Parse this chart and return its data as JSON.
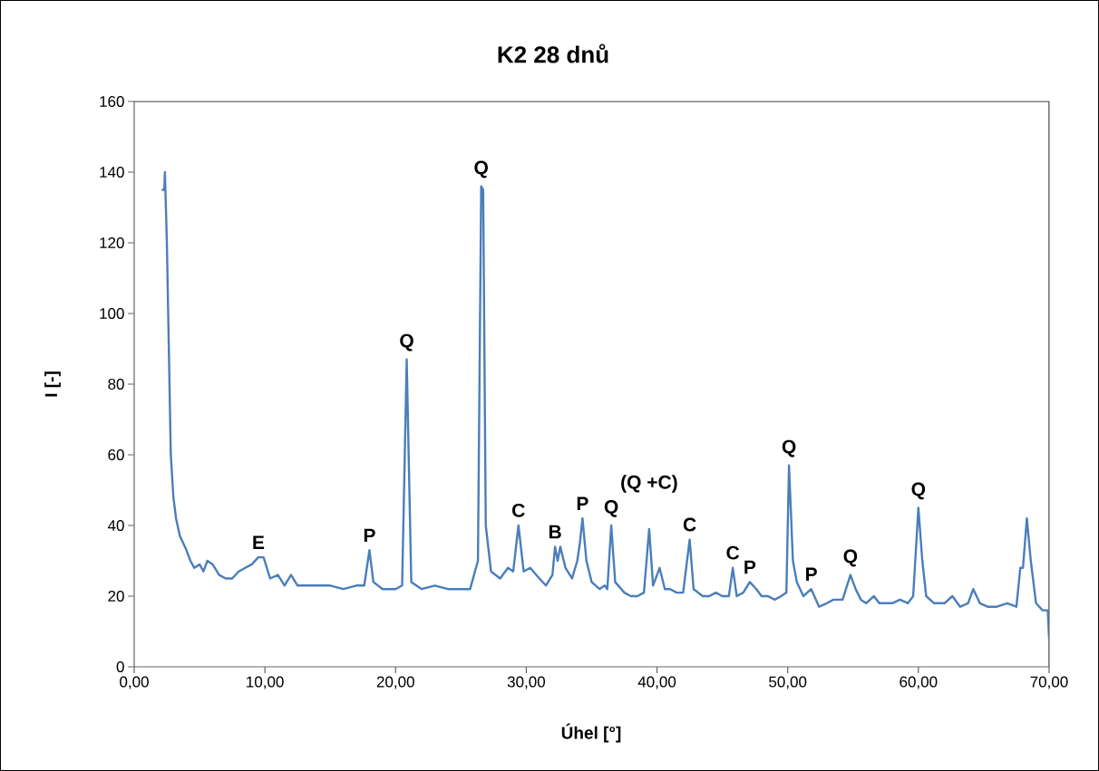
{
  "chart_data": {
    "type": "line",
    "title": "K2 28 dnů",
    "xlabel": "Úhel [°]",
    "ylabel": "I [-]",
    "xlim": [
      0,
      70
    ],
    "ylim": [
      0,
      160
    ],
    "xticks": [
      {
        "value": 0,
        "label": "0,00"
      },
      {
        "value": 10,
        "label": "10,00"
      },
      {
        "value": 20,
        "label": "20,00"
      },
      {
        "value": 30,
        "label": "30,00"
      },
      {
        "value": 40,
        "label": "40,00"
      },
      {
        "value": 50,
        "label": "50,00"
      },
      {
        "value": 60,
        "label": "60,00"
      },
      {
        "value": 70,
        "label": "70,00"
      }
    ],
    "yticks": [
      0,
      20,
      40,
      60,
      80,
      100,
      120,
      140,
      160
    ],
    "grid": false,
    "marker": "none",
    "line_style": "solid",
    "series": [
      {
        "color": "#4a7ebb",
        "x": [
          2.1,
          2.3,
          2.35,
          2.5,
          2.6,
          2.7,
          2.8,
          3.0,
          3.2,
          3.5,
          4.0,
          4.3,
          4.6,
          5.0,
          5.3,
          5.6,
          6.0,
          6.5,
          7.0,
          7.5,
          8.0,
          8.5,
          9.0,
          9.5,
          9.9,
          10.4,
          11.0,
          11.5,
          12.0,
          12.5,
          13.0,
          14.0,
          15.0,
          16.0,
          17.0,
          17.6,
          18.0,
          18.3,
          19.0,
          20.0,
          20.5,
          20.85,
          21.2,
          22.0,
          23.0,
          24.0,
          25.0,
          25.7,
          26.0,
          26.3,
          26.55,
          26.7,
          26.9,
          27.3,
          28.0,
          28.6,
          29.0,
          29.4,
          29.8,
          30.3,
          31.0,
          31.5,
          32.0,
          32.2,
          32.4,
          32.6,
          33.0,
          33.5,
          33.9,
          34.1,
          34.3,
          34.6,
          35.0,
          35.6,
          36.0,
          36.2,
          36.5,
          36.8,
          37.5,
          38.0,
          38.5,
          39.0,
          39.4,
          39.7,
          40.2,
          40.6,
          41.0,
          41.5,
          42.0,
          42.5,
          42.8,
          43.5,
          44.0,
          44.5,
          45.0,
          45.5,
          45.8,
          46.1,
          46.6,
          47.1,
          47.6,
          48.0,
          48.5,
          49.0,
          49.5,
          49.9,
          50.1,
          50.4,
          50.7,
          51.2,
          51.8,
          52.4,
          53.0,
          53.5,
          54.2,
          54.8,
          55.2,
          55.6,
          56.0,
          56.6,
          57.0,
          58.0,
          58.6,
          59.2,
          59.6,
          60.0,
          60.3,
          60.6,
          61.2,
          62.0,
          62.6,
          63.2,
          63.8,
          64.2,
          64.7,
          65.3,
          66.0,
          66.8,
          67.5,
          67.8,
          68.0,
          68.3,
          68.6,
          69.0,
          69.5,
          69.9,
          70.0
        ],
        "values": [
          135,
          135,
          140,
          120,
          100,
          80,
          60,
          48,
          42,
          37,
          33,
          30,
          28,
          29,
          27,
          30,
          29,
          26,
          25,
          25,
          27,
          28,
          29,
          31,
          31,
          25,
          26,
          23,
          26,
          23,
          23,
          23,
          23,
          22,
          23,
          23,
          33,
          24,
          22,
          22,
          23,
          87,
          24,
          22,
          23,
          22,
          22,
          22,
          26,
          30,
          136,
          135,
          40,
          27,
          25,
          28,
          27,
          40,
          27,
          28,
          25,
          23,
          26,
          34,
          30,
          34,
          28,
          25,
          30,
          35,
          42,
          30,
          24,
          22,
          23,
          22,
          40,
          24,
          21,
          20,
          20,
          21,
          39,
          23,
          28,
          22,
          22,
          21,
          21,
          36,
          22,
          20,
          20,
          21,
          20,
          20,
          28,
          20,
          21,
          24,
          22,
          20,
          20,
          19,
          20,
          21,
          57,
          30,
          24,
          20,
          22,
          17,
          18,
          19,
          19,
          26,
          22,
          19,
          18,
          20,
          18,
          18,
          19,
          18,
          20,
          45,
          30,
          20,
          18,
          18,
          20,
          17,
          18,
          22,
          18,
          17,
          17,
          18,
          17,
          28,
          28,
          42,
          30,
          18,
          16,
          16,
          8
        ]
      }
    ],
    "annotations": [
      {
        "text": "E",
        "x": 9.5,
        "y": 31
      },
      {
        "text": "P",
        "x": 18.0,
        "y": 33
      },
      {
        "text": "Q",
        "x": 20.85,
        "y": 87
      },
      {
        "text": "Q",
        "x": 26.55,
        "y": 136
      },
      {
        "text": "C",
        "x": 29.4,
        "y": 40
      },
      {
        "text": "B",
        "x": 32.2,
        "y": 34
      },
      {
        "text": "P",
        "x": 34.3,
        "y": 42
      },
      {
        "text": "Q",
        "x": 36.5,
        "y": 40
      },
      {
        "text": "(Q +C)",
        "x": 39.4,
        "y": 39
      },
      {
        "text": "C",
        "x": 42.5,
        "y": 36
      },
      {
        "text": "C",
        "x": 45.8,
        "y": 28
      },
      {
        "text": "P",
        "x": 47.1,
        "y": 24
      },
      {
        "text": "Q",
        "x": 50.1,
        "y": 57
      },
      {
        "text": "P",
        "x": 51.8,
        "y": 22
      },
      {
        "text": "Q",
        "x": 54.8,
        "y": 26
      },
      {
        "text": "Q",
        "x": 60.0,
        "y": 45
      }
    ]
  }
}
